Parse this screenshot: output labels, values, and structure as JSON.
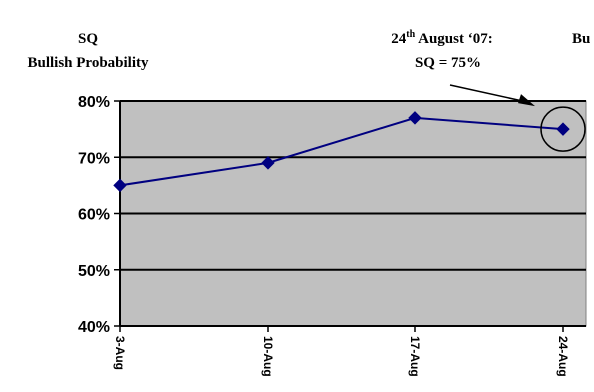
{
  "chart_data": {
    "type": "line",
    "title_line1": "SQ",
    "title_line2": "Bullish Probability",
    "categories": [
      "3-Aug",
      "10-Aug",
      "17-Aug",
      "24-Aug"
    ],
    "values": [
      0.65,
      0.69,
      0.77,
      0.75
    ],
    "ylim": [
      0.4,
      0.8
    ],
    "yticks": [
      "40%",
      "50%",
      "60%",
      "70%",
      "80%"
    ],
    "ytick_values": [
      0.4,
      0.5,
      0.6,
      0.7,
      0.8
    ],
    "grid": true,
    "plot_background": "#c0c0c0",
    "line_color": "#000080",
    "annotation": {
      "line1_prefix": "24",
      "line1_superscript": "th",
      "line1_suffix": " August ‘07:",
      "line2": "SQ = 75%",
      "target_index": 3
    },
    "clipped_text": "Bu"
  }
}
